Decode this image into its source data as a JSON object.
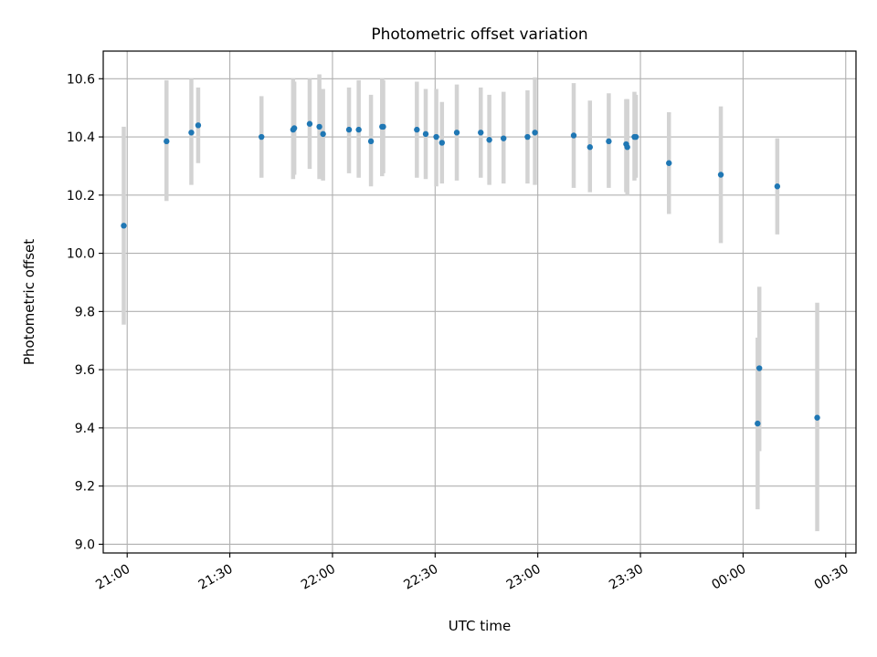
{
  "chart_data": {
    "type": "scatter",
    "title": "Photometric offset variation",
    "xlabel": "UTC time",
    "ylabel": "Photometric offset",
    "xlim": [
      "2024-01-01T20:53:00",
      "2024-01-02T00:33:00"
    ],
    "ylim": [
      8.97,
      10.695
    ],
    "grid": true,
    "x_ticks": [
      {
        "t": "2024-01-01T21:00:00",
        "label": "21:00"
      },
      {
        "t": "2024-01-01T21:30:00",
        "label": "21:30"
      },
      {
        "t": "2024-01-01T22:00:00",
        "label": "22:00"
      },
      {
        "t": "2024-01-01T22:30:00",
        "label": "22:30"
      },
      {
        "t": "2024-01-01T23:00:00",
        "label": "23:00"
      },
      {
        "t": "2024-01-01T23:30:00",
        "label": "23:30"
      },
      {
        "t": "2024-01-02T00:00:00",
        "label": "00:00"
      },
      {
        "t": "2024-01-02T00:30:00",
        "label": "00:30"
      }
    ],
    "y_ticks": [
      9.0,
      9.2,
      9.4,
      9.6,
      9.8,
      10.0,
      10.2,
      10.4,
      10.6
    ],
    "point_color": "#1f77b4",
    "errorbar_color": "#d3d3d3",
    "points": [
      {
        "t": "2024-01-01T20:59:00",
        "y": 10.095,
        "lo": 9.755,
        "hi": 10.435
      },
      {
        "t": "2024-01-01T21:11:30",
        "y": 10.385,
        "lo": 10.18,
        "hi": 10.595
      },
      {
        "t": "2024-01-01T21:18:45",
        "y": 10.415,
        "lo": 10.235,
        "hi": 10.6
      },
      {
        "t": "2024-01-01T21:20:45",
        "y": 10.44,
        "lo": 10.31,
        "hi": 10.57
      },
      {
        "t": "2024-01-01T21:39:15",
        "y": 10.4,
        "lo": 10.26,
        "hi": 10.54
      },
      {
        "t": "2024-01-01T21:48:30",
        "y": 10.425,
        "lo": 10.255,
        "hi": 10.6
      },
      {
        "t": "2024-01-01T21:48:50",
        "y": 10.43,
        "lo": 10.27,
        "hi": 10.59
      },
      {
        "t": "2024-01-01T21:53:20",
        "y": 10.445,
        "lo": 10.29,
        "hi": 10.6
      },
      {
        "t": "2024-01-01T21:56:10",
        "y": 10.435,
        "lo": 10.255,
        "hi": 10.615
      },
      {
        "t": "2024-01-01T21:57:15",
        "y": 10.41,
        "lo": 10.25,
        "hi": 10.565
      },
      {
        "t": "2024-01-01T22:04:50",
        "y": 10.425,
        "lo": 10.275,
        "hi": 10.57
      },
      {
        "t": "2024-01-01T22:07:40",
        "y": 10.425,
        "lo": 10.26,
        "hi": 10.595
      },
      {
        "t": "2024-01-01T22:11:15",
        "y": 10.385,
        "lo": 10.23,
        "hi": 10.545
      },
      {
        "t": "2024-01-01T22:14:30",
        "y": 10.435,
        "lo": 10.265,
        "hi": 10.6
      },
      {
        "t": "2024-01-01T22:14:50",
        "y": 10.435,
        "lo": 10.275,
        "hi": 10.595
      },
      {
        "t": "2024-01-01T22:24:40",
        "y": 10.425,
        "lo": 10.26,
        "hi": 10.59
      },
      {
        "t": "2024-01-01T22:27:15",
        "y": 10.41,
        "lo": 10.255,
        "hi": 10.565
      },
      {
        "t": "2024-01-01T22:30:20",
        "y": 10.4,
        "lo": 10.23,
        "hi": 10.565
      },
      {
        "t": "2024-01-01T22:32:00",
        "y": 10.38,
        "lo": 10.24,
        "hi": 10.52
      },
      {
        "t": "2024-01-01T22:36:20",
        "y": 10.415,
        "lo": 10.25,
        "hi": 10.58
      },
      {
        "t": "2024-01-01T22:43:20",
        "y": 10.415,
        "lo": 10.26,
        "hi": 10.57
      },
      {
        "t": "2024-01-01T22:45:50",
        "y": 10.39,
        "lo": 10.235,
        "hi": 10.545
      },
      {
        "t": "2024-01-01T22:50:00",
        "y": 10.395,
        "lo": 10.24,
        "hi": 10.555
      },
      {
        "t": "2024-01-01T22:57:00",
        "y": 10.4,
        "lo": 10.24,
        "hi": 10.56
      },
      {
        "t": "2024-01-01T22:59:10",
        "y": 10.415,
        "lo": 10.235,
        "hi": 10.605
      },
      {
        "t": "2024-01-01T23:10:30",
        "y": 10.405,
        "lo": 10.225,
        "hi": 10.585
      },
      {
        "t": "2024-01-01T23:15:15",
        "y": 10.365,
        "lo": 10.21,
        "hi": 10.525
      },
      {
        "t": "2024-01-01T23:20:45",
        "y": 10.385,
        "lo": 10.225,
        "hi": 10.55
      },
      {
        "t": "2024-01-01T23:25:50",
        "y": 10.375,
        "lo": 10.21,
        "hi": 10.53
      },
      {
        "t": "2024-01-01T23:26:10",
        "y": 10.365,
        "lo": 10.2,
        "hi": 10.53
      },
      {
        "t": "2024-01-01T23:28:15",
        "y": 10.4,
        "lo": 10.25,
        "hi": 10.555
      },
      {
        "t": "2024-01-01T23:28:40",
        "y": 10.4,
        "lo": 10.26,
        "hi": 10.545
      },
      {
        "t": "2024-01-01T23:38:20",
        "y": 10.31,
        "lo": 10.135,
        "hi": 10.485
      },
      {
        "t": "2024-01-01T23:53:30",
        "y": 10.27,
        "lo": 10.035,
        "hi": 10.505
      },
      {
        "t": "2024-01-02T00:04:15",
        "y": 9.415,
        "lo": 9.12,
        "hi": 9.71
      },
      {
        "t": "2024-01-02T00:04:45",
        "y": 9.605,
        "lo": 9.32,
        "hi": 9.885
      },
      {
        "t": "2024-01-02T00:10:00",
        "y": 10.23,
        "lo": 10.065,
        "hi": 10.395
      },
      {
        "t": "2024-01-02T00:21:40",
        "y": 9.435,
        "lo": 9.045,
        "hi": 9.83
      }
    ]
  }
}
